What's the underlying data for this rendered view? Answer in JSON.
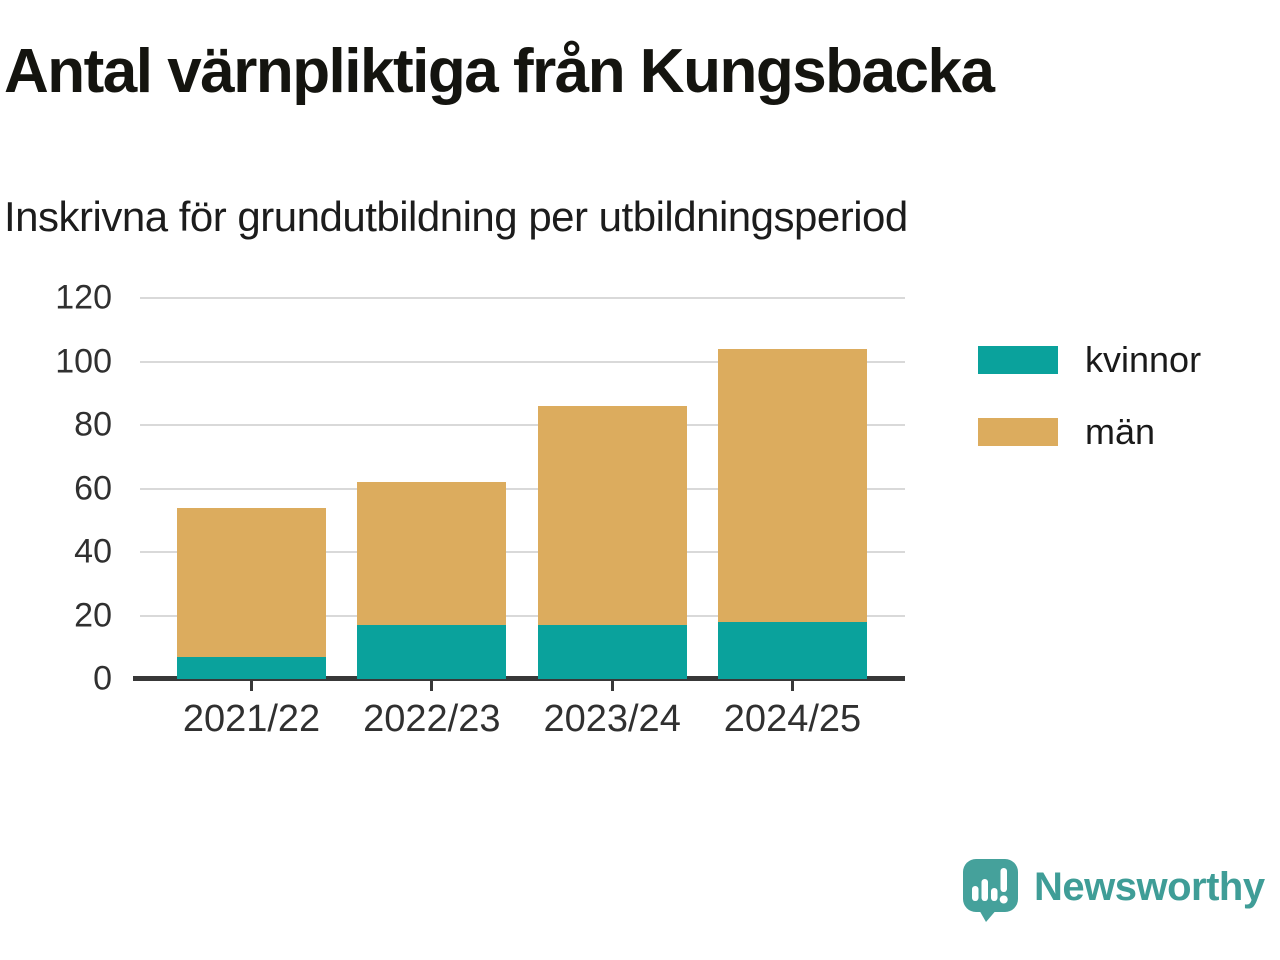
{
  "title": "Antal värnpliktiga från Kungsbacka",
  "subtitle": "Inskrivna för grundutbildning per utbildningsperiod",
  "chart_data": {
    "type": "bar",
    "stacked": true,
    "title": "Antal värnpliktiga från Kungsbacka",
    "subtitle": "Inskrivna för grundutbildning per utbildningsperiod",
    "categories": [
      "2021/22",
      "2022/23",
      "2023/24",
      "2024/25"
    ],
    "series": [
      {
        "name": "kvinnor",
        "color": "#0aa29c",
        "values": [
          7,
          17,
          17,
          18
        ]
      },
      {
        "name": "män",
        "color": "#dcac5e",
        "values": [
          47,
          45,
          69,
          86
        ]
      }
    ],
    "totals": [
      54,
      62,
      86,
      104
    ],
    "ylim": [
      0,
      120
    ],
    "yticks": [
      0,
      20,
      40,
      60,
      80,
      100,
      120
    ],
    "xlabel": "",
    "ylabel": "",
    "grid": "horizontal-gridlines",
    "legend_position": "right"
  },
  "branding": {
    "name": "Newsworthy",
    "color": "#3f9d97",
    "logo": "newsworthy-speech-bubble-bar-chart-icon"
  }
}
